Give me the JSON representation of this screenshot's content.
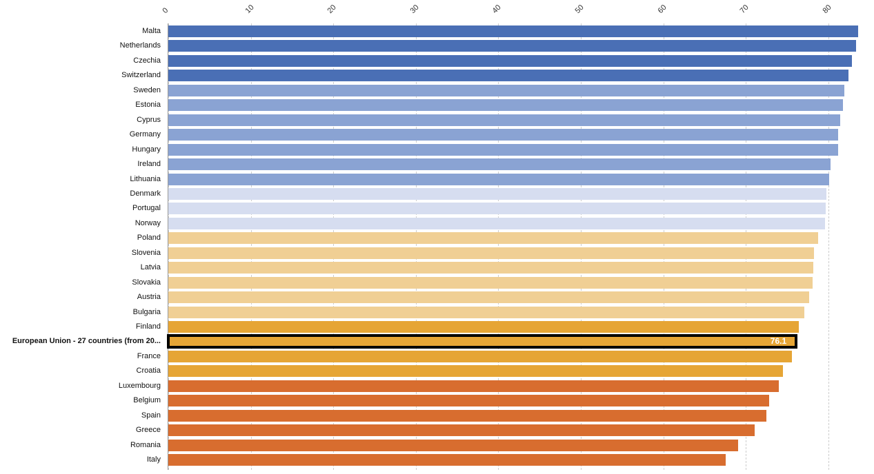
{
  "chart_data": {
    "type": "bar",
    "orientation": "horizontal",
    "title": "",
    "xlabel": "",
    "ylabel": "",
    "xlim": [
      0,
      84
    ],
    "x_ticks": [
      "0",
      "10",
      "20",
      "30",
      "40",
      "50",
      "60",
      "70",
      "80"
    ],
    "grid": true,
    "highlight": {
      "category": "European Union - 27 countries (from 20...",
      "label": "76.1"
    },
    "categories": [
      "Malta",
      "Netherlands",
      "Czechia",
      "Switzerland",
      "Sweden",
      "Estonia",
      "Cyprus",
      "Germany",
      "Hungary",
      "Ireland",
      "Lithuania",
      "Denmark",
      "Portugal",
      "Norway",
      "Poland",
      "Slovenia",
      "Latvia",
      "Slovakia",
      "Austria",
      "Bulgaria",
      "Finland",
      "European Union - 27 countries (from 20...",
      "France",
      "Croatia",
      "Luxembourg",
      "Belgium",
      "Spain",
      "Greece",
      "Romania",
      "Italy"
    ],
    "values": [
      83.6,
      83.4,
      82.9,
      82.4,
      81.9,
      81.8,
      81.4,
      81.2,
      81.2,
      80.3,
      80.1,
      79.8,
      79.7,
      79.6,
      78.8,
      78.3,
      78.2,
      78.1,
      77.7,
      77.1,
      76.4,
      76.1,
      75.6,
      74.5,
      74.0,
      72.8,
      72.5,
      71.1,
      69.1,
      67.6
    ],
    "colors": [
      "#4a6fb5",
      "#4a6fb5",
      "#4a6fb5",
      "#4a6fb5",
      "#8aa3d3",
      "#8aa3d3",
      "#8aa3d3",
      "#8aa3d3",
      "#8aa3d3",
      "#8aa3d3",
      "#8aa3d3",
      "#d6ddf0",
      "#d6ddf0",
      "#d6ddf0",
      "#f0cf94",
      "#f0cf94",
      "#f0cf94",
      "#f0cf94",
      "#f0cf94",
      "#f0cf94",
      "#e6a535",
      "#e6a535",
      "#e6a535",
      "#e6a535",
      "#d86d2f",
      "#d86d2f",
      "#d86d2f",
      "#d86d2f",
      "#d86d2f",
      "#d86d2f"
    ]
  }
}
